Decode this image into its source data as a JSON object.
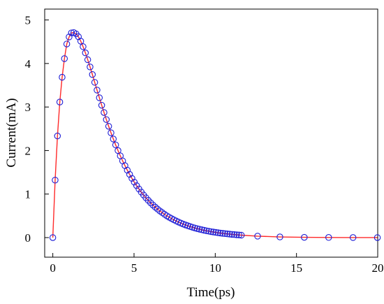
{
  "chart_data": {
    "type": "scatter",
    "title": "",
    "xlabel": "Time(ps)",
    "ylabel": "Current(mA)",
    "xlim": [
      -0.5,
      20
    ],
    "ylim": [
      -0.45,
      5.25
    ],
    "xticks": [
      0,
      5,
      10,
      15,
      20
    ],
    "yticks": [
      0,
      1,
      2,
      3,
      4,
      5
    ],
    "grid": false,
    "legend": "none",
    "series": [
      {
        "kind": "markers",
        "marker": "circle-open",
        "color": "#1f1fd6",
        "x": [
          0.0,
          0.143,
          0.287,
          0.43,
          0.573,
          0.716,
          0.86,
          1.003,
          1.146,
          1.29,
          1.433,
          1.576,
          1.719,
          1.863,
          2.006,
          2.149,
          2.292,
          2.436,
          2.579,
          2.722,
          2.866,
          3.009,
          3.152,
          3.295,
          3.439,
          3.582,
          3.725,
          3.868,
          4.012,
          4.155,
          4.298,
          4.442,
          4.585,
          4.728,
          4.871,
          5.015,
          5.158,
          5.301,
          5.445,
          5.588,
          5.731,
          5.874,
          6.018,
          6.161,
          6.304,
          6.447,
          6.591,
          6.734,
          6.877,
          7.021,
          7.164,
          7.307,
          7.45,
          7.594,
          7.737,
          7.88,
          8.023,
          8.167,
          8.31,
          8.453,
          8.597,
          8.74,
          8.883,
          9.026,
          9.17,
          9.313,
          9.456,
          9.599,
          9.743,
          9.886,
          10.029,
          10.173,
          10.316,
          10.459,
          10.602,
          10.746,
          10.889,
          11.032,
          11.175,
          11.319,
          11.462,
          11.605,
          12.606,
          13.98,
          15.48,
          16.98,
          18.48,
          19.98
        ],
        "y": [
          0.0,
          1.32,
          2.335,
          3.114,
          3.684,
          4.112,
          4.448,
          4.61,
          4.703,
          4.711,
          4.681,
          4.616,
          4.513,
          4.386,
          4.244,
          4.087,
          3.921,
          3.747,
          3.567,
          3.389,
          3.213,
          3.041,
          2.874,
          2.712,
          2.557,
          2.408,
          2.265,
          2.13,
          2.0,
          1.878,
          1.762,
          1.653,
          1.549,
          1.452,
          1.36,
          1.274,
          1.193,
          1.117,
          1.045,
          0.978,
          0.915,
          0.856,
          0.801,
          0.749,
          0.7,
          0.655,
          0.612,
          0.573,
          0.535,
          0.5,
          0.468,
          0.437,
          0.408,
          0.382,
          0.357,
          0.333,
          0.311,
          0.291,
          0.272,
          0.254,
          0.237,
          0.221,
          0.207,
          0.193,
          0.18,
          0.168,
          0.157,
          0.147,
          0.137,
          0.128,
          0.119,
          0.111,
          0.104,
          0.097,
          0.091,
          0.085,
          0.079,
          0.074,
          0.069,
          0.064,
          0.06,
          0.056,
          0.033,
          0.015,
          0.006,
          0.003,
          0.001,
          0.0
        ]
      },
      {
        "kind": "line",
        "color": "#ff2a2a",
        "x": [
          0.0,
          0.143,
          0.287,
          0.43,
          0.573,
          0.716,
          0.86,
          1.003,
          1.146,
          1.29,
          1.433,
          1.576,
          1.719,
          1.863,
          2.006,
          2.149,
          2.292,
          2.436,
          2.579,
          2.722,
          2.866,
          3.009,
          3.152,
          3.295,
          3.439,
          3.582,
          3.725,
          3.868,
          4.012,
          4.155,
          4.298,
          4.442,
          4.585,
          4.728,
          4.871,
          5.015,
          5.158,
          5.301,
          5.445,
          5.588,
          5.731,
          5.874,
          6.018,
          6.161,
          6.304,
          6.447,
          6.591,
          6.734,
          6.877,
          7.021,
          7.164,
          7.307,
          7.45,
          7.594,
          7.737,
          7.88,
          8.023,
          8.167,
          8.31,
          8.453,
          8.597,
          8.74,
          8.883,
          9.026,
          9.17,
          9.313,
          9.456,
          9.599,
          9.743,
          9.886,
          10.029,
          10.173,
          10.316,
          10.459,
          10.602,
          10.746,
          10.889,
          11.032,
          11.175,
          11.319,
          11.462,
          11.605,
          12.606,
          13.98,
          15.48,
          16.98,
          18.48,
          19.98
        ],
        "y": [
          0.0,
          1.32,
          2.335,
          3.114,
          3.684,
          4.112,
          4.448,
          4.61,
          4.703,
          4.711,
          4.681,
          4.616,
          4.513,
          4.386,
          4.244,
          4.087,
          3.921,
          3.747,
          3.567,
          3.389,
          3.213,
          3.041,
          2.874,
          2.712,
          2.557,
          2.408,
          2.265,
          2.13,
          2.0,
          1.878,
          1.762,
          1.653,
          1.549,
          1.452,
          1.36,
          1.274,
          1.193,
          1.117,
          1.045,
          0.978,
          0.915,
          0.856,
          0.801,
          0.749,
          0.7,
          0.655,
          0.612,
          0.573,
          0.535,
          0.5,
          0.468,
          0.437,
          0.408,
          0.382,
          0.357,
          0.333,
          0.311,
          0.291,
          0.272,
          0.254,
          0.237,
          0.221,
          0.207,
          0.193,
          0.18,
          0.168,
          0.157,
          0.147,
          0.137,
          0.128,
          0.119,
          0.111,
          0.104,
          0.097,
          0.091,
          0.085,
          0.079,
          0.074,
          0.069,
          0.064,
          0.06,
          0.056,
          0.033,
          0.015,
          0.006,
          0.003,
          0.001,
          0.0
        ]
      }
    ]
  }
}
